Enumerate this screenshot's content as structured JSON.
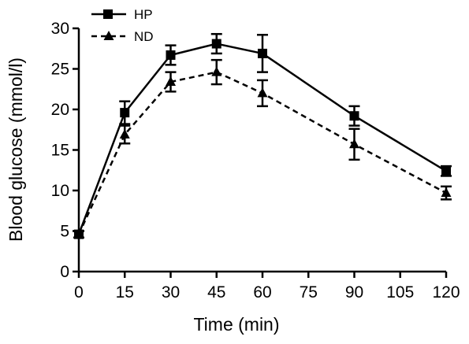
{
  "chart_data": {
    "type": "line",
    "xlabel": "Time (min)",
    "ylabel": "Blood glucose (mmol/l)",
    "xlim": [
      0,
      120
    ],
    "ylim": [
      0,
      30
    ],
    "x_ticks": [
      0,
      15,
      30,
      45,
      60,
      75,
      90,
      105,
      120
    ],
    "y_ticks": [
      0,
      5,
      10,
      15,
      20,
      25,
      30
    ],
    "grid": false,
    "legend_position": "top-left",
    "x": [
      0,
      15,
      30,
      45,
      60,
      90,
      120
    ],
    "series": [
      {
        "name": "HP",
        "marker": "square",
        "line_style": "solid",
        "color": "#000000",
        "values": [
          4.6,
          19.6,
          26.7,
          28.1,
          26.9,
          19.2,
          12.4
        ],
        "errors": [
          0.4,
          1.4,
          1.2,
          1.2,
          2.3,
          1.2,
          0.6
        ]
      },
      {
        "name": "ND",
        "marker": "triangle",
        "line_style": "dashed",
        "color": "#000000",
        "values": [
          4.6,
          16.9,
          23.4,
          24.6,
          22.0,
          15.7,
          9.7
        ],
        "errors": [
          0.4,
          1.1,
          1.2,
          1.5,
          1.6,
          1.9,
          0.8
        ]
      }
    ]
  }
}
